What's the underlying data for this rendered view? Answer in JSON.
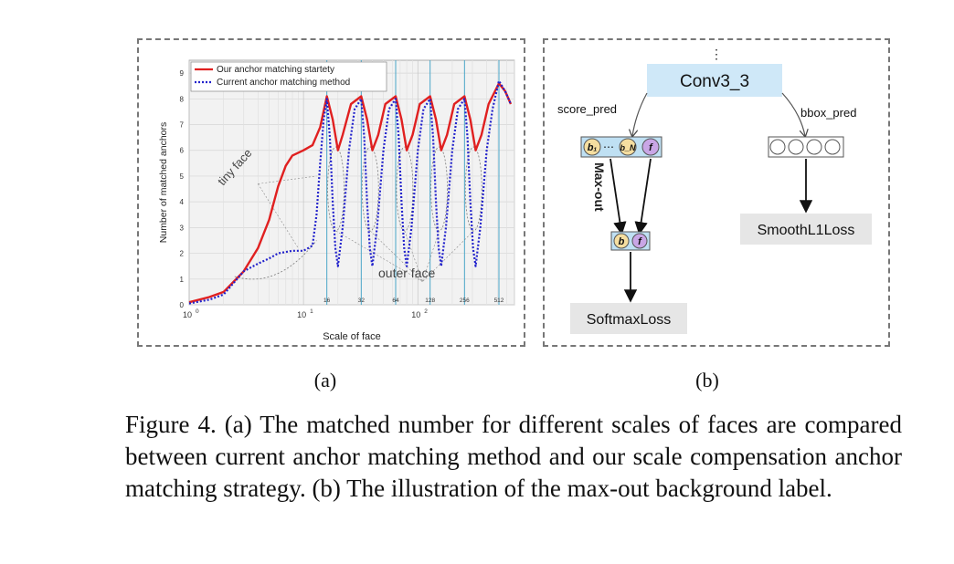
{
  "figure_a": {
    "sublabel": "(a)",
    "chart_data": {
      "type": "line",
      "xlabel": "Scale of face",
      "ylabel": "Number of matched anchors",
      "xscale": "log",
      "xlim": [
        1,
        700
      ],
      "ylim": [
        0,
        9.5
      ],
      "grid": true,
      "legend_position": "top-left",
      "y_ticks": [
        "0",
        "1",
        "2",
        "3",
        "4",
        "5",
        "6",
        "7",
        "8",
        "9"
      ],
      "x_ticks": [
        {
          "value": 1,
          "base": "10",
          "exp": "0"
        },
        {
          "value": 10,
          "base": "10",
          "exp": "1"
        },
        {
          "value": 100,
          "base": "10",
          "exp": "2"
        }
      ],
      "anchor_scales": [
        16,
        32,
        64,
        128,
        256,
        512
      ],
      "anchor_scale_labels": [
        "16",
        "32",
        "64",
        "128",
        "256",
        "512"
      ],
      "series": [
        {
          "name": "Our anchor matching startety",
          "color": "#e02020",
          "style": "solid",
          "points": [
            [
              1,
              0.1
            ],
            [
              1.5,
              0.3
            ],
            [
              2,
              0.5
            ],
            [
              3,
              1.3
            ],
            [
              4,
              2.2
            ],
            [
              5,
              3.3
            ],
            [
              6,
              4.6
            ],
            [
              7,
              5.4
            ],
            [
              8,
              5.8
            ],
            [
              10,
              6.0
            ],
            [
              12,
              6.2
            ],
            [
              14,
              6.9
            ],
            [
              16,
              8.1
            ],
            [
              18,
              7.2
            ],
            [
              20,
              6.0
            ],
            [
              22,
              6.6
            ],
            [
              26,
              7.8
            ],
            [
              32,
              8.1
            ],
            [
              36,
              7.2
            ],
            [
              40,
              6.0
            ],
            [
              45,
              6.6
            ],
            [
              52,
              7.8
            ],
            [
              64,
              8.1
            ],
            [
              72,
              7.2
            ],
            [
              80,
              6.0
            ],
            [
              90,
              6.6
            ],
            [
              104,
              7.8
            ],
            [
              128,
              8.1
            ],
            [
              144,
              7.2
            ],
            [
              160,
              6.0
            ],
            [
              180,
              6.6
            ],
            [
              208,
              7.8
            ],
            [
              256,
              8.1
            ],
            [
              288,
              7.2
            ],
            [
              320,
              6.0
            ],
            [
              360,
              6.6
            ],
            [
              416,
              7.8
            ],
            [
              512,
              8.6
            ],
            [
              580,
              8.3
            ],
            [
              650,
              7.8
            ]
          ]
        },
        {
          "name": "Current anchor matching method",
          "color": "#2222cc",
          "style": "dotted",
          "points": [
            [
              1,
              0.05
            ],
            [
              1.5,
              0.2
            ],
            [
              2,
              0.4
            ],
            [
              3,
              1.3
            ],
            [
              4,
              1.6
            ],
            [
              5,
              1.8
            ],
            [
              6,
              2.0
            ],
            [
              8,
              2.1
            ],
            [
              10,
              2.1
            ],
            [
              12,
              2.3
            ],
            [
              13,
              3.5
            ],
            [
              14,
              5.5
            ],
            [
              15,
              7.2
            ],
            [
              16,
              8.0
            ],
            [
              17,
              6.5
            ],
            [
              18,
              4.0
            ],
            [
              19,
              2.2
            ],
            [
              20,
              1.5
            ],
            [
              22,
              3.0
            ],
            [
              25,
              6.0
            ],
            [
              28,
              7.6
            ],
            [
              32,
              8.0
            ],
            [
              34,
              6.5
            ],
            [
              36,
              4.0
            ],
            [
              38,
              2.2
            ],
            [
              40,
              1.5
            ],
            [
              44,
              3.0
            ],
            [
              50,
              6.0
            ],
            [
              56,
              7.6
            ],
            [
              64,
              8.0
            ],
            [
              68,
              6.5
            ],
            [
              72,
              4.0
            ],
            [
              76,
              2.2
            ],
            [
              80,
              1.5
            ],
            [
              88,
              3.0
            ],
            [
              100,
              6.0
            ],
            [
              112,
              7.6
            ],
            [
              128,
              8.0
            ],
            [
              136,
              6.5
            ],
            [
              144,
              4.0
            ],
            [
              152,
              2.2
            ],
            [
              160,
              1.5
            ],
            [
              176,
              3.0
            ],
            [
              200,
              6.0
            ],
            [
              224,
              7.6
            ],
            [
              256,
              8.0
            ],
            [
              272,
              6.5
            ],
            [
              288,
              4.0
            ],
            [
              304,
              2.2
            ],
            [
              320,
              1.5
            ],
            [
              352,
              3.0
            ],
            [
              400,
              6.0
            ],
            [
              450,
              7.6
            ],
            [
              512,
              8.7
            ],
            [
              580,
              8.3
            ],
            [
              650,
              7.8
            ]
          ]
        }
      ],
      "annotations": {
        "tiny_face": "tiny face",
        "outer_face": "outer face"
      }
    }
  },
  "figure_b": {
    "sublabel": "(b)",
    "dots_top": "⋮",
    "conv": "Conv3_3",
    "score_pred": "score_pred",
    "bbox_pred": "bbox_pred",
    "max_out": "Max-out",
    "b1": "b₁",
    "ellipsis": "⋯",
    "bN": "b_N",
    "f": "f",
    "b": "b",
    "smoothl1": "SmoothL1Loss",
    "softmax": "SoftmaxLoss",
    "colors": {
      "conv": "#cfe8f8",
      "node_yellow": "#f5dea0",
      "node_purple": "#c9a6e6",
      "score_box": "#bfe0f3",
      "loss": "#e6e6e6"
    }
  },
  "caption": "Figure 4. (a) The matched number for different scales of faces are compared between current anchor matching method and our scale compensation anchor matching strategy. (b) The illustration of the max-out background label."
}
